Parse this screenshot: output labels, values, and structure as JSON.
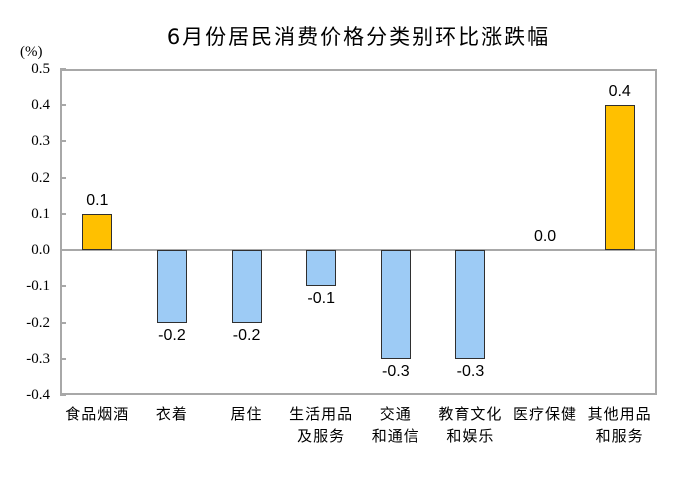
{
  "chart_data": {
    "type": "bar",
    "title": "6月份居民消费价格分类别环比涨跌幅",
    "unit_label": "(%)",
    "categories": [
      "食品烟酒",
      "衣着",
      "居住",
      "生活用品\n及服务",
      "交通\n和通信",
      "教育文化\n和娱乐",
      "医疗保健",
      "其他用品\n和服务"
    ],
    "values": [
      0.1,
      -0.2,
      -0.2,
      -0.1,
      -0.3,
      -0.3,
      0.0,
      0.4
    ],
    "value_labels": [
      "0.1",
      "-0.2",
      "-0.2",
      "-0.1",
      "-0.3",
      "-0.3",
      "0.0",
      "0.4"
    ],
    "bar_colors": [
      "#FFC000",
      "#9DCBF5",
      "#9DCBF5",
      "#9DCBF5",
      "#9DCBF5",
      "#9DCBF5",
      null,
      "#FFC000"
    ],
    "positive_color": "#FFC000",
    "negative_color": "#9DCBF5",
    "bar_border_color": "#2f2f2f",
    "axis_color": "#a8a8a8",
    "xlabel": "",
    "ylabel": "(%)",
    "ylim": [
      -0.4,
      0.5
    ],
    "yticks": [
      "0.5",
      "0.4",
      "0.3",
      "0.2",
      "0.1",
      "0.0",
      "-0.1",
      "-0.2",
      "-0.3",
      "-0.4"
    ],
    "grid": false,
    "legend_position": "none"
  }
}
